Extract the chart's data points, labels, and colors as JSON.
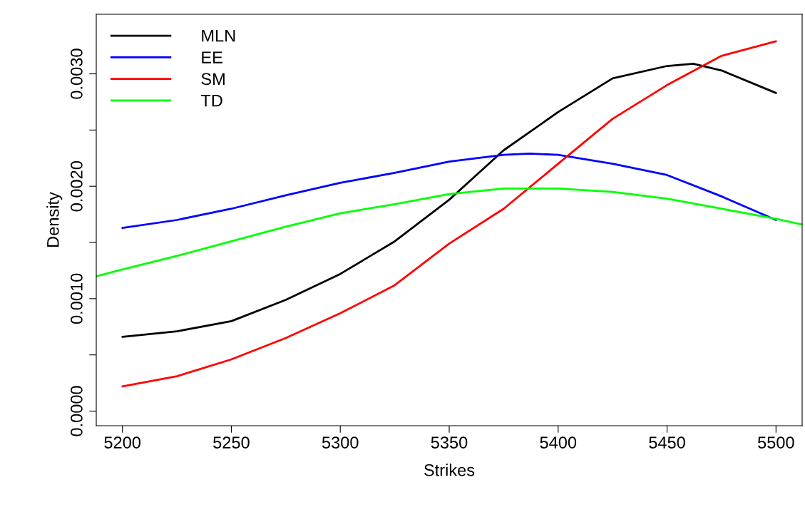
{
  "chart_data": {
    "type": "line",
    "xlabel": "Strikes",
    "ylabel": "Density",
    "xlim": [
      5188,
      5512
    ],
    "xticks": [
      5200,
      5250,
      5300,
      5350,
      5400,
      5450,
      5500
    ],
    "ylim": [
      -0.00013,
      0.00353
    ],
    "yticks": [
      {
        "value": 0,
        "label": "0.0000"
      },
      {
        "value": 0.0005,
        "label": null
      },
      {
        "value": 0.001,
        "label": "0.0010"
      },
      {
        "value": 0.0015,
        "label": null
      },
      {
        "value": 0.002,
        "label": "0.0020"
      },
      {
        "value": 0.0025,
        "label": null
      },
      {
        "value": 0.003,
        "label": "0.0030"
      }
    ],
    "grid": false,
    "legend": "top left",
    "marker": "none",
    "line_style": "solid",
    "series": [
      {
        "name": "MLN",
        "color": "#000000",
        "x": [
          5200,
          5225,
          5250,
          5275,
          5300,
          5325,
          5350,
          5375,
          5400,
          5425,
          5450,
          5462,
          5475,
          5500
        ],
        "values": [
          0.00066,
          0.00071,
          0.0008,
          0.00099,
          0.00122,
          0.00151,
          0.00188,
          0.00232,
          0.00266,
          0.00296,
          0.00307,
          0.00309,
          0.00303,
          0.00283
        ]
      },
      {
        "name": "EE",
        "color": "#0000ff",
        "x": [
          5200,
          5225,
          5250,
          5275,
          5300,
          5325,
          5350,
          5375,
          5387,
          5400,
          5425,
          5450,
          5475,
          5500
        ],
        "values": [
          0.00163,
          0.0017,
          0.0018,
          0.00192,
          0.00203,
          0.00212,
          0.00222,
          0.00228,
          0.00229,
          0.00228,
          0.0022,
          0.0021,
          0.00191,
          0.0017
        ]
      },
      {
        "name": "SM",
        "color": "#ff0000",
        "x": [
          5200,
          5225,
          5250,
          5275,
          5300,
          5325,
          5350,
          5375,
          5400,
          5425,
          5450,
          5475,
          5500
        ],
        "values": [
          0.00022,
          0.00031,
          0.00046,
          0.00065,
          0.00087,
          0.00112,
          0.00149,
          0.0018,
          0.0022,
          0.0026,
          0.0029,
          0.00316,
          0.00329
        ]
      },
      {
        "name": "TD",
        "color": "#00ff00",
        "x": [
          5188,
          5200,
          5225,
          5250,
          5275,
          5300,
          5325,
          5350,
          5375,
          5400,
          5425,
          5450,
          5475,
          5500,
          5512
        ],
        "values": [
          0.0012,
          0.00126,
          0.00138,
          0.00151,
          0.00164,
          0.00176,
          0.00184,
          0.00193,
          0.00198,
          0.00198,
          0.00195,
          0.00189,
          0.0018,
          0.00171,
          0.00166
        ]
      }
    ]
  }
}
